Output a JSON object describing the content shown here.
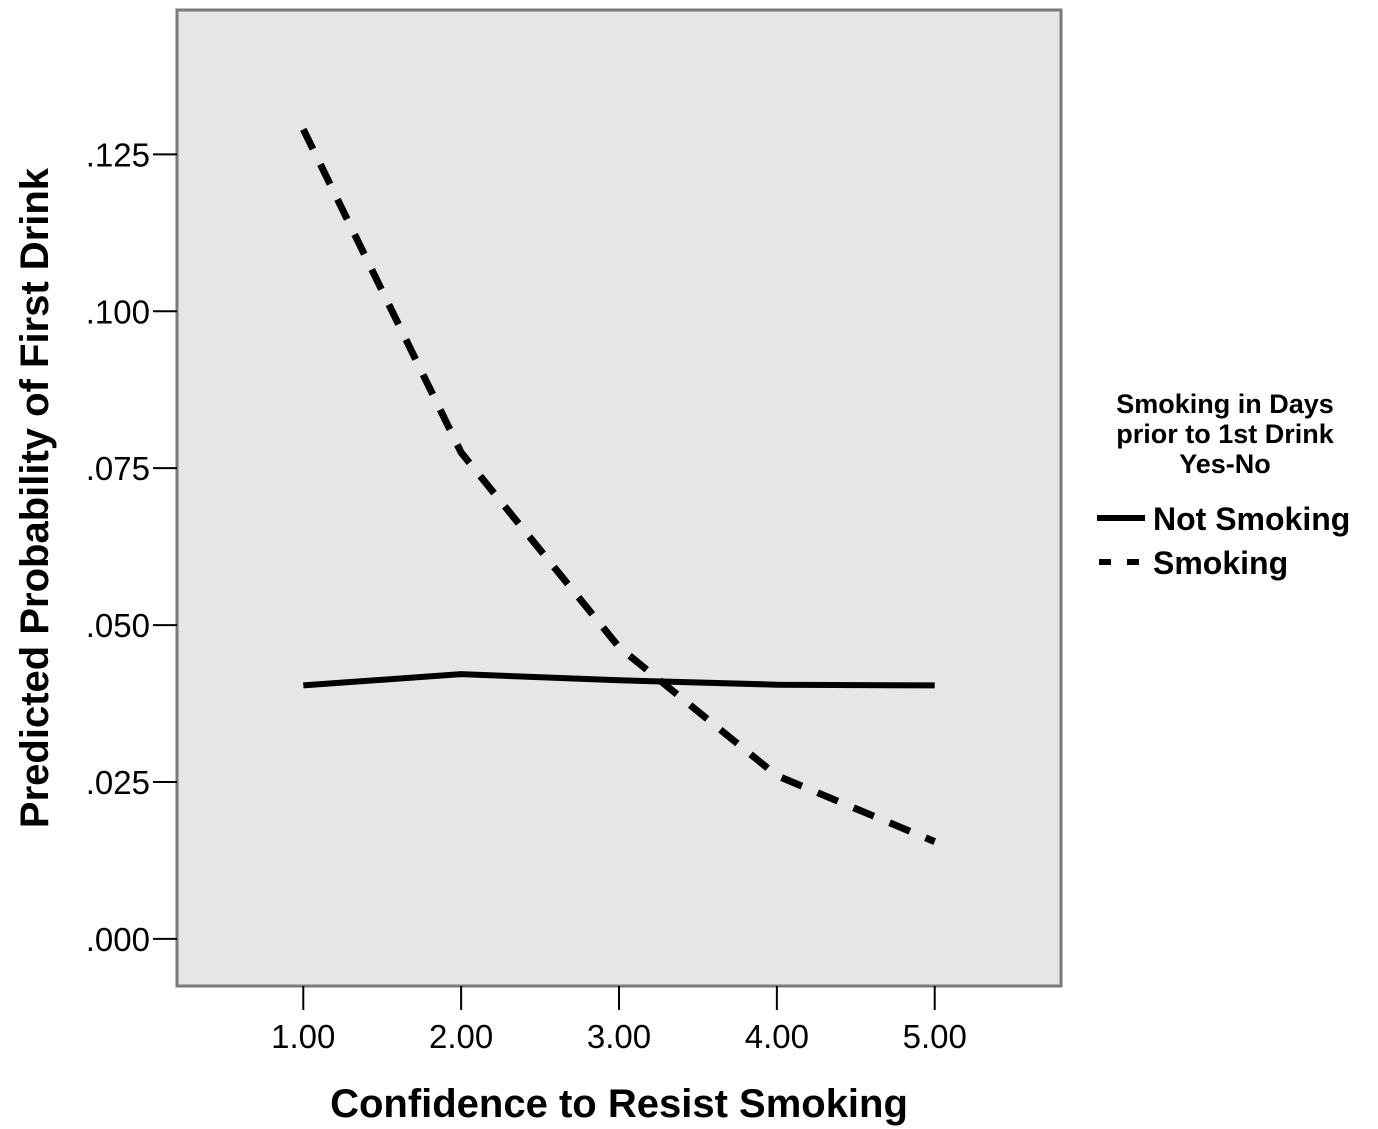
{
  "chart_data": {
    "type": "line",
    "title": "",
    "xlabel": "Confidence to Resist Smoking",
    "ylabel": "Predicted Probability of First Drink",
    "x": [
      1,
      2,
      3,
      4,
      5
    ],
    "x_ticks": [
      "1.00",
      "2.00",
      "3.00",
      "4.00",
      "5.00"
    ],
    "x_tick_values": [
      1,
      2,
      3,
      4,
      5
    ],
    "xlim": [
      0.2,
      5.8
    ],
    "y_ticks": [
      ".000",
      ".025",
      ".050",
      ".075",
      ".100",
      ".125"
    ],
    "y_tick_values": [
      0,
      0.025,
      0.05,
      0.075,
      0.1,
      0.125
    ],
    "ylim": [
      -0.0075,
      0.148
    ],
    "grid": false,
    "background": "#e6e6e6",
    "legend": {
      "title_lines": [
        "Smoking in Days",
        "prior to 1st Drink",
        "Yes-No"
      ],
      "placement": "right"
    },
    "series": [
      {
        "name": "Not Smoking",
        "style": "solid",
        "color": "#000000",
        "values": [
          0.0404,
          0.0422,
          0.0412,
          0.0405,
          0.0404
        ]
      },
      {
        "name": "Smoking",
        "style": "dashed",
        "color": "#000000",
        "values": [
          0.129,
          0.0775,
          0.0465,
          0.026,
          0.0155
        ]
      }
    ]
  }
}
